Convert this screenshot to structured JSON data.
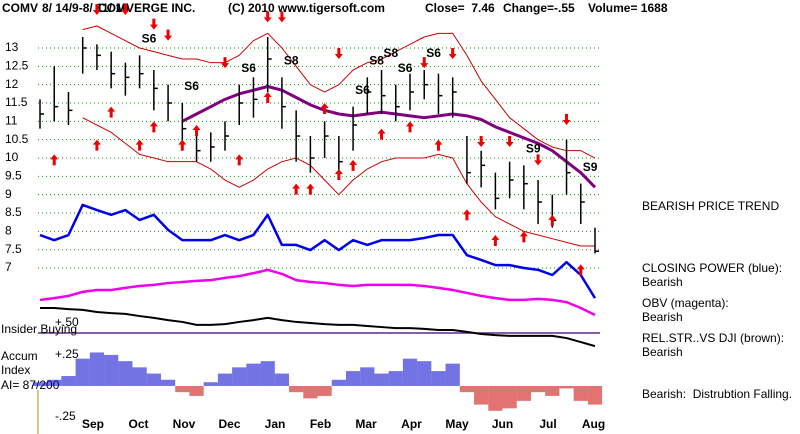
{
  "chart_data": {
    "type": "stock",
    "ticker": "COMV",
    "date_range": "8/ 14/9-8/ 11/ 10",
    "company": "COMVERGE INC.",
    "copyright": "(C) 2010 www.tigersoft.com",
    "close_text": "Close=  7.46",
    "change_text": "Change=-.55",
    "volume_text": "Volume= 1688",
    "months": [
      "Sep",
      "Oct",
      "Nov",
      "Dec",
      "Jan",
      "Feb",
      "Mar",
      "Apr",
      "May",
      "Jun",
      "Jul",
      "Aug"
    ],
    "ylim": [
      4.8,
      14.2
    ],
    "yticks": [
      13,
      12.5,
      12,
      11.5,
      11,
      10.5,
      10,
      9.5,
      9,
      8.5,
      8,
      7.5,
      7
    ],
    "grid": true,
    "high": [
      11.6,
      12.5,
      11.8,
      13.3,
      13.1,
      12.9,
      12.6,
      12.8,
      12.4,
      12.0,
      11.5,
      10.7,
      10.7,
      11.0,
      12.0,
      12.2,
      13.3,
      12.2,
      11.3,
      10.6,
      11.0,
      10.6,
      11.4,
      12.2,
      12.4,
      12.0,
      12.3,
      12.4,
      12.3,
      12.2,
      10.6,
      10.2,
      9.6,
      9.9,
      9.8,
      9.4,
      9.0,
      10.5,
      9.3,
      8.1
    ],
    "low": [
      10.8,
      11.0,
      10.9,
      12.3,
      12.4,
      11.9,
      11.7,
      11.9,
      11.3,
      11.0,
      10.2,
      9.9,
      9.9,
      10.2,
      10.9,
      11.1,
      11.8,
      10.8,
      9.9,
      9.6,
      10.0,
      9.6,
      10.2,
      11.2,
      11.2,
      11.0,
      11.3,
      11.6,
      11.2,
      11.1,
      9.3,
      9.2,
      8.6,
      8.9,
      8.6,
      8.2,
      8.1,
      9.0,
      8.2,
      7.4
    ],
    "close": [
      11.2,
      11.4,
      11.3,
      13.0,
      12.8,
      12.3,
      12.2,
      12.3,
      11.9,
      11.5,
      10.8,
      10.2,
      10.3,
      10.6,
      11.5,
      11.6,
      12.7,
      11.4,
      10.6,
      10.0,
      10.6,
      9.9,
      10.9,
      11.8,
      11.7,
      11.4,
      11.8,
      12.0,
      11.7,
      11.8,
      9.6,
      9.8,
      8.9,
      9.4,
      9.3,
      8.8,
      8.3,
      9.6,
      8.8,
      7.46
    ],
    "series": [
      {
        "key": "ma",
        "color": "#800080",
        "width": 3,
        "values": [
          null,
          null,
          null,
          null,
          null,
          null,
          null,
          null,
          null,
          null,
          11.0,
          11.2,
          11.4,
          11.6,
          11.75,
          11.85,
          11.95,
          11.85,
          11.65,
          11.45,
          11.3,
          11.2,
          11.15,
          11.2,
          11.25,
          11.2,
          11.15,
          11.1,
          11.15,
          11.2,
          11.15,
          11.05,
          10.85,
          10.7,
          10.55,
          10.4,
          10.2,
          9.9,
          9.6,
          9.2
        ]
      },
      {
        "key": "upper_band",
        "color": "#cc0000",
        "width": 1,
        "values": [
          null,
          null,
          null,
          13.5,
          13.6,
          13.4,
          13.2,
          13.0,
          12.9,
          12.8,
          12.7,
          12.7,
          12.6,
          12.6,
          12.8,
          13.2,
          13.4,
          13.0,
          12.5,
          12.0,
          11.8,
          12.0,
          12.4,
          12.6,
          12.7,
          12.9,
          13.1,
          13.3,
          13.4,
          13.4,
          12.8,
          12.1,
          11.6,
          11.1,
          10.8,
          10.5,
          10.3,
          10.2,
          10.2,
          10.0
        ]
      },
      {
        "key": "lower_band",
        "color": "#cc0000",
        "width": 1,
        "values": [
          null,
          null,
          null,
          11.1,
          10.9,
          10.7,
          10.4,
          10.1,
          10.0,
          9.9,
          9.9,
          9.9,
          9.7,
          9.4,
          9.2,
          9.4,
          9.7,
          9.9,
          10.0,
          9.8,
          9.4,
          9.0,
          9.4,
          9.7,
          9.9,
          10.0,
          10.0,
          10.0,
          10.1,
          10.0,
          9.3,
          8.8,
          8.4,
          8.2,
          8.0,
          7.9,
          7.8,
          7.7,
          7.6,
          7.6
        ]
      },
      {
        "key": "closing_power",
        "color": "#0000ee",
        "width": 2.5,
        "values": [
          7.9,
          7.76,
          7.9,
          8.72,
          8.58,
          8.45,
          8.58,
          8.31,
          8.45,
          8.04,
          7.76,
          7.76,
          7.76,
          7.9,
          7.76,
          7.9,
          8.45,
          7.63,
          7.63,
          7.49,
          7.76,
          7.49,
          7.76,
          7.63,
          7.76,
          7.76,
          7.76,
          7.82,
          7.9,
          7.9,
          7.35,
          7.22,
          7.08,
          7.08,
          7.0,
          6.95,
          6.81,
          7.16,
          6.81,
          6.18
        ]
      },
      {
        "key": "obv",
        "color": "#ee00ee",
        "width": 2.5,
        "values": [
          6.13,
          6.18,
          6.24,
          6.35,
          6.4,
          6.4,
          6.46,
          6.51,
          6.54,
          6.59,
          6.62,
          6.65,
          6.67,
          6.73,
          6.78,
          6.86,
          6.95,
          6.84,
          6.67,
          6.62,
          6.59,
          6.54,
          6.51,
          6.54,
          6.54,
          6.54,
          6.54,
          6.51,
          6.46,
          6.4,
          6.32,
          6.24,
          6.18,
          6.13,
          6.13,
          6.16,
          6.13,
          6.07,
          5.91,
          5.72
        ]
      },
      {
        "key": "rel_strength",
        "color": "#000000",
        "width": 2,
        "values": [
          5.91,
          5.91,
          5.88,
          5.86,
          5.8,
          5.77,
          5.75,
          5.69,
          5.64,
          5.58,
          5.53,
          5.45,
          5.45,
          5.47,
          5.53,
          5.58,
          5.64,
          5.58,
          5.53,
          5.5,
          5.47,
          5.45,
          5.45,
          5.42,
          5.39,
          5.36,
          5.36,
          5.34,
          5.31,
          5.31,
          5.26,
          5.2,
          5.17,
          5.15,
          5.15,
          5.15,
          5.15,
          5.09,
          4.98,
          4.87
        ]
      }
    ],
    "buy_arrows": [
      null,
      10.1,
      null,
      null,
      10.5,
      11.4,
      null,
      10.5,
      11.0,
      null,
      10.5,
      10.9,
      null,
      null,
      10.1,
      null,
      11.8,
      null,
      9.3,
      9.3,
      11.5,
      9.7,
      9.95,
      null,
      10.8,
      null,
      11.0,
      null,
      10.5,
      null,
      8.6,
      null,
      7.9,
      null,
      8.0,
      null,
      8.45,
      null,
      7.1,
      null
    ],
    "sell_arrows": [
      null,
      null,
      null,
      null,
      13.9,
      null,
      13.9,
      null,
      13.5,
      13.2,
      null,
      null,
      null,
      12.45,
      null,
      null,
      13.7,
      13.7,
      null,
      null,
      null,
      12.7,
      null,
      null,
      null,
      null,
      null,
      12.45,
      null,
      12.7,
      null,
      10.3,
      null,
      10.3,
      null,
      9.8,
      null,
      10.9,
      null,
      null
    ],
    "signal_labels": [
      null,
      null,
      null,
      null,
      null,
      null,
      null,
      "S6",
      null,
      null,
      "S6",
      null,
      null,
      null,
      "S6",
      null,
      null,
      "S8",
      null,
      null,
      null,
      null,
      "S6",
      "S8",
      "S8",
      "S6",
      null,
      "S6",
      null,
      null,
      null,
      null,
      null,
      null,
      "S9",
      null,
      null,
      null,
      "S9",
      null
    ],
    "arrow_color": "#ee0000",
    "insider_label": "Insider Buying",
    "insider_level": "+.50",
    "accum_title": [
      "Accum",
      "Index"
    ],
    "accum_summary": "AI= 87/200",
    "accum_ylim": [
      -0.27,
      0.33
    ],
    "accum_yticks": [
      {
        "value": 0.25,
        "label": "+.25"
      },
      {
        "value": -0.25,
        "label": "-.25"
      }
    ],
    "accum": [
      0.03,
      0.05,
      0.08,
      0.22,
      0.27,
      0.25,
      0.2,
      0.15,
      0.1,
      0.05,
      -0.05,
      -0.08,
      0.03,
      0.1,
      0.15,
      0.18,
      0.2,
      0.1,
      -0.05,
      -0.1,
      -0.08,
      0.05,
      0.12,
      0.15,
      0.1,
      0.12,
      0.22,
      0.2,
      0.12,
      0.18,
      -0.05,
      -0.15,
      -0.2,
      -0.18,
      -0.12,
      -0.05,
      -0.08,
      -0.02,
      -0.12,
      -0.15
    ],
    "accum_colors": {
      "positive": "#0000cc",
      "negative": "#cc0000"
    },
    "right_notes": [
      "BEARISH PRICE TREND",
      "CLOSING POWER (blue):",
      "Bearish",
      "OBV (magenta):",
      "Bearish",
      "REL.STR..VS DJI (brown):",
      "Bearish",
      "Bearish:  Distrubtion Falling."
    ]
  }
}
